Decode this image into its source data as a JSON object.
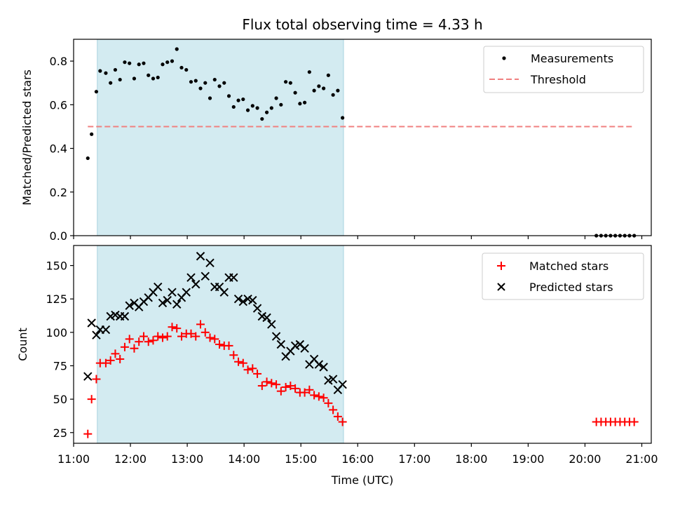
{
  "chart_data": [
    {
      "type": "scatter",
      "title": "Flux total observing time = 4.33 h",
      "xlabel": "",
      "ylabel": "Matched/Predicted stars",
      "xlim": [
        "11:00",
        "21:10"
      ],
      "ylim": [
        0,
        0.9
      ],
      "yticks": [
        "0.0",
        "0.2",
        "0.4",
        "0.6",
        "0.8"
      ],
      "yticks_values": [
        0,
        0.2,
        0.4,
        0.6,
        0.8
      ],
      "legend_position": "top-right",
      "shaded_interval": {
        "start": "11:25",
        "end": "15:45",
        "color": "#d3ebf1"
      },
      "series": [
        {
          "name": "Measurements",
          "marker": "dot",
          "color": "#000000",
          "points": [
            [
              "11:15",
              0.355
            ],
            [
              "11:19",
              0.465
            ],
            [
              "11:24",
              0.66
            ],
            [
              "11:28",
              0.755
            ],
            [
              "11:34",
              0.745
            ],
            [
              "11:39",
              0.7
            ],
            [
              "11:44",
              0.76
            ],
            [
              "11:49",
              0.715
            ],
            [
              "11:54",
              0.795
            ],
            [
              "11:59",
              0.79
            ],
            [
              "12:04",
              0.72
            ],
            [
              "12:09",
              0.785
            ],
            [
              "12:14",
              0.79
            ],
            [
              "12:19",
              0.735
            ],
            [
              "12:24",
              0.72
            ],
            [
              "12:29",
              0.725
            ],
            [
              "12:34",
              0.785
            ],
            [
              "12:39",
              0.795
            ],
            [
              "12:44",
              0.8
            ],
            [
              "12:49",
              0.855
            ],
            [
              "12:54",
              0.77
            ],
            [
              "12:59",
              0.76
            ],
            [
              "13:04",
              0.705
            ],
            [
              "13:09",
              0.71
            ],
            [
              "13:14",
              0.675
            ],
            [
              "13:19",
              0.7
            ],
            [
              "13:24",
              0.63
            ],
            [
              "13:29",
              0.715
            ],
            [
              "13:34",
              0.685
            ],
            [
              "13:39",
              0.7
            ],
            [
              "13:44",
              0.64
            ],
            [
              "13:49",
              0.59
            ],
            [
              "13:54",
              0.62
            ],
            [
              "13:59",
              0.625
            ],
            [
              "14:04",
              0.575
            ],
            [
              "14:09",
              0.595
            ],
            [
              "14:14",
              0.585
            ],
            [
              "14:19",
              0.535
            ],
            [
              "14:24",
              0.565
            ],
            [
              "14:29",
              0.585
            ],
            [
              "14:34",
              0.63
            ],
            [
              "14:39",
              0.6
            ],
            [
              "14:44",
              0.705
            ],
            [
              "14:49",
              0.7
            ],
            [
              "14:54",
              0.655
            ],
            [
              "14:59",
              0.605
            ],
            [
              "15:04",
              0.61
            ],
            [
              "15:09",
              0.75
            ],
            [
              "15:14",
              0.665
            ],
            [
              "15:19",
              0.685
            ],
            [
              "15:24",
              0.675
            ],
            [
              "15:29",
              0.735
            ],
            [
              "15:34",
              0.645
            ],
            [
              "15:39",
              0.665
            ],
            [
              "15:44",
              0.54
            ],
            [
              "20:12",
              0.0
            ],
            [
              "20:17",
              0.0
            ],
            [
              "20:22",
              0.0
            ],
            [
              "20:27",
              0.0
            ],
            [
              "20:32",
              0.0
            ],
            [
              "20:37",
              0.0
            ],
            [
              "20:42",
              0.0
            ],
            [
              "20:47",
              0.0
            ],
            [
              "20:52",
              0.0
            ]
          ]
        },
        {
          "name": "Threshold",
          "marker": "dashed-line",
          "color": "#f08080",
          "points": [
            [
              "11:15",
              0.5
            ],
            [
              "20:52",
              0.5
            ]
          ]
        }
      ]
    },
    {
      "type": "scatter",
      "title": "",
      "xlabel": "Time (UTC)",
      "ylabel": "Count",
      "xlim": [
        "11:00",
        "21:10"
      ],
      "ylim": [
        17,
        165
      ],
      "xticks": [
        "11:00",
        "12:00",
        "13:00",
        "14:00",
        "15:00",
        "16:00",
        "17:00",
        "18:00",
        "19:00",
        "20:00",
        "21:00"
      ],
      "yticks": [
        "25",
        "50",
        "75",
        "100",
        "125",
        "150"
      ],
      "yticks_values": [
        25,
        50,
        75,
        100,
        125,
        150
      ],
      "legend_position": "top-right",
      "shaded_interval": {
        "start": "11:25",
        "end": "15:45",
        "color": "#d3ebf1"
      },
      "series": [
        {
          "name": "Matched stars",
          "marker": "plus",
          "color": "#ff0000",
          "points": [
            [
              "11:15",
              24
            ],
            [
              "11:19",
              50
            ],
            [
              "11:24",
              65
            ],
            [
              "11:28",
              77
            ],
            [
              "11:34",
              77
            ],
            [
              "11:39",
              79
            ],
            [
              "11:44",
              84
            ],
            [
              "11:49",
              80
            ],
            [
              "11:54",
              89
            ],
            [
              "11:59",
              95
            ],
            [
              "12:04",
              88
            ],
            [
              "12:09",
              93
            ],
            [
              "12:14",
              97
            ],
            [
              "12:19",
              93
            ],
            [
              "12:24",
              94
            ],
            [
              "12:29",
              97
            ],
            [
              "12:34",
              96
            ],
            [
              "12:39",
              97
            ],
            [
              "12:44",
              104
            ],
            [
              "12:49",
              103
            ],
            [
              "12:54",
              97
            ],
            [
              "12:59",
              99
            ],
            [
              "13:04",
              99
            ],
            [
              "13:09",
              97
            ],
            [
              "13:14",
              106
            ],
            [
              "13:19",
              100
            ],
            [
              "13:24",
              96
            ],
            [
              "13:29",
              95
            ],
            [
              "13:34",
              91
            ],
            [
              "13:39",
              90
            ],
            [
              "13:44",
              90
            ],
            [
              "13:49",
              83
            ],
            [
              "13:54",
              78
            ],
            [
              "13:59",
              77
            ],
            [
              "14:04",
              72
            ],
            [
              "14:09",
              73
            ],
            [
              "14:14",
              69
            ],
            [
              "14:19",
              60
            ],
            [
              "14:24",
              63
            ],
            [
              "14:29",
              62
            ],
            [
              "14:34",
              61
            ],
            [
              "14:39",
              56
            ],
            [
              "14:44",
              59
            ],
            [
              "14:49",
              60
            ],
            [
              "14:54",
              58
            ],
            [
              "14:59",
              55
            ],
            [
              "15:04",
              55
            ],
            [
              "15:09",
              57
            ],
            [
              "15:14",
              53
            ],
            [
              "15:19",
              52
            ],
            [
              "15:24",
              51
            ],
            [
              "15:29",
              47
            ],
            [
              "15:34",
              42
            ],
            [
              "15:39",
              37
            ],
            [
              "15:44",
              33
            ],
            [
              "20:12",
              33
            ],
            [
              "20:17",
              33
            ],
            [
              "20:22",
              33
            ],
            [
              "20:27",
              33
            ],
            [
              "20:32",
              33
            ],
            [
              "20:37",
              33
            ],
            [
              "20:42",
              33
            ],
            [
              "20:47",
              33
            ],
            [
              "20:52",
              33
            ]
          ]
        },
        {
          "name": "Predicted stars",
          "marker": "x",
          "color": "#000000",
          "points": [
            [
              "11:15",
              67
            ],
            [
              "11:19",
              107
            ],
            [
              "11:24",
              98
            ],
            [
              "11:28",
              102
            ],
            [
              "11:34",
              102
            ],
            [
              "11:39",
              112
            ],
            [
              "11:44",
              113
            ],
            [
              "11:49",
              112
            ],
            [
              "11:54",
              112
            ],
            [
              "11:59",
              120
            ],
            [
              "12:04",
              122
            ],
            [
              "12:09",
              119
            ],
            [
              "12:14",
              123
            ],
            [
              "12:19",
              126
            ],
            [
              "12:24",
              130
            ],
            [
              "12:29",
              134
            ],
            [
              "12:34",
              122
            ],
            [
              "12:39",
              124
            ],
            [
              "12:44",
              130
            ],
            [
              "12:49",
              121
            ],
            [
              "12:54",
              126
            ],
            [
              "12:59",
              130
            ],
            [
              "13:04",
              141
            ],
            [
              "13:09",
              136
            ],
            [
              "13:14",
              157
            ],
            [
              "13:19",
              142
            ],
            [
              "13:24",
              152
            ],
            [
              "13:29",
              134
            ],
            [
              "13:34",
              134
            ],
            [
              "13:39",
              130
            ],
            [
              "13:44",
              141
            ],
            [
              "13:49",
              141
            ],
            [
              "13:54",
              125
            ],
            [
              "13:59",
              123
            ],
            [
              "14:04",
              125
            ],
            [
              "14:09",
              124
            ],
            [
              "14:14",
              118
            ],
            [
              "14:19",
              112
            ],
            [
              "14:24",
              111
            ],
            [
              "14:29",
              106
            ],
            [
              "14:34",
              97
            ],
            [
              "14:39",
              91
            ],
            [
              "14:44",
              82
            ],
            [
              "14:49",
              86
            ],
            [
              "14:54",
              90
            ],
            [
              "14:59",
              91
            ],
            [
              "15:04",
              88
            ],
            [
              "15:09",
              76
            ],
            [
              "15:14",
              80
            ],
            [
              "15:19",
              76
            ],
            [
              "15:24",
              74
            ],
            [
              "15:29",
              64
            ],
            [
              "15:34",
              65
            ],
            [
              "15:39",
              57
            ],
            [
              "15:44",
              61
            ]
          ]
        }
      ]
    }
  ]
}
